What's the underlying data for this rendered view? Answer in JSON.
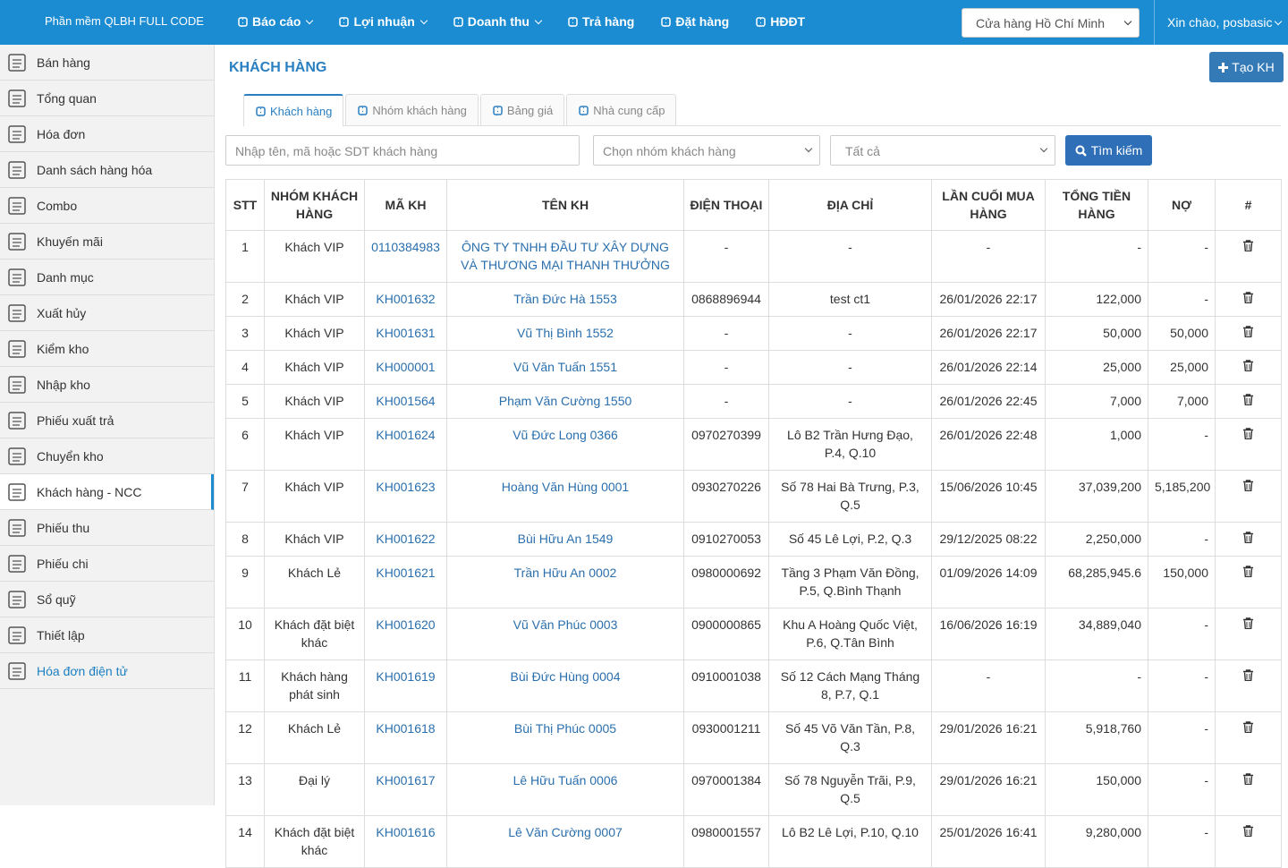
{
  "navbar": {
    "brand": "Phần mềm QLBH FULL CODE",
    "menu": [
      {
        "label": "Báo cáo",
        "dropdown": true
      },
      {
        "label": "Lợi nhuận",
        "dropdown": true
      },
      {
        "label": "Doanh thu",
        "dropdown": true
      },
      {
        "label": "Trả hàng",
        "dropdown": false
      },
      {
        "label": "Đặt hàng",
        "dropdown": false
      },
      {
        "label": "HĐĐT",
        "dropdown": false
      }
    ],
    "store_select": "Cửa hàng Hồ Chí Minh",
    "greeting": "Xin chào, posbasic"
  },
  "sidebar": {
    "items": [
      "Bán hàng",
      "Tổng quan",
      "Hóa đơn",
      "Danh sách hàng hóa",
      "Combo",
      "Khuyến mãi",
      "Danh mục",
      "Xuất hủy",
      "Kiểm kho",
      "Nhập kho",
      "Phiếu xuất trả",
      "Chuyển kho",
      "Khách hàng - NCC",
      "Phiếu thu",
      "Phiếu chi",
      "Sổ quỹ",
      "Thiết lập",
      "Hóa đơn điện tử"
    ],
    "active_index": 12,
    "link_index": 17
  },
  "page": {
    "title": "KHÁCH HÀNG",
    "create_button": "Tạo KH"
  },
  "tabs": {
    "items": [
      "Khách hàng",
      "Nhóm khách hàng",
      "Bảng giá",
      "Nhà cung cấp"
    ],
    "active_index": 0
  },
  "filters": {
    "search_placeholder": "Nhập tên, mã hoặc SDT khách hàng",
    "group_placeholder": "Chọn nhóm khách hàng",
    "status_select": "Tất cả",
    "search_button": "Tìm kiếm"
  },
  "table": {
    "headers": [
      "STT",
      "NHÓM KHÁCH HÀNG",
      "MÃ KH",
      "TÊN KH",
      "ĐIỆN THOẠI",
      "ĐỊA CHỈ",
      "LẦN CUỐI MUA HÀNG",
      "TỔNG TIỀN HÀNG",
      "NỢ",
      "#"
    ],
    "rows": [
      [
        "1",
        "Khách VIP",
        "0110384983",
        "ÔNG TY TNHH ĐẦU TƯ XÂY DỰNG VÀ THƯƠNG MẠI THANH THƯỞNG",
        "-",
        "-",
        "-",
        "-",
        "-"
      ],
      [
        "2",
        "Khách VIP",
        "KH001632",
        "Trần Đức Hà 1553",
        "0868896944",
        "test ct1",
        "26/01/2026 22:17",
        "122,000",
        "-"
      ],
      [
        "3",
        "Khách VIP",
        "KH001631",
        "Vũ Thị Bình 1552",
        "-",
        "-",
        "26/01/2026 22:17",
        "50,000",
        "50,000"
      ],
      [
        "4",
        "Khách VIP",
        "KH000001",
        "Vũ Văn Tuấn 1551",
        "-",
        "-",
        "26/01/2026 22:14",
        "25,000",
        "25,000"
      ],
      [
        "5",
        "Khách VIP",
        "KH001564",
        "Phạm Văn Cường 1550",
        "-",
        "-",
        "26/01/2026 22:45",
        "7,000",
        "7,000"
      ],
      [
        "6",
        "Khách VIP",
        "KH001624",
        "Vũ Đức Long 0366",
        "0970270399",
        "Lô B2 Trần Hưng Đạo, P.4, Q.10",
        "26/01/2026 22:48",
        "1,000",
        "-"
      ],
      [
        "7",
        "Khách VIP",
        "KH001623",
        "Hoàng Văn Hùng 0001",
        "0930270226",
        "Số 78 Hai Bà Trưng, P.3, Q.5",
        "15/06/2026 10:45",
        "37,039,200",
        "5,185,200"
      ],
      [
        "8",
        "Khách VIP",
        "KH001622",
        "Bùi Hữu An 1549",
        "0910270053",
        "Số 45 Lê Lợi, P.2, Q.3",
        "29/12/2025 08:22",
        "2,250,000",
        "-"
      ],
      [
        "9",
        "Khách Lẻ",
        "KH001621",
        "Trần Hữu An 0002",
        "0980000692",
        "Tầng 3 Phạm Văn Đồng, P.5, Q.Bình Thạnh",
        "01/09/2026 14:09",
        "68,285,945.6",
        "150,000"
      ],
      [
        "10",
        "Khách đặt biệt khác",
        "KH001620",
        "Vũ Văn Phúc 0003",
        "0900000865",
        "Khu A Hoàng Quốc Việt, P.6, Q.Tân Bình",
        "16/06/2026 16:19",
        "34,889,040",
        "-"
      ],
      [
        "11",
        "Khách hàng phát sinh",
        "KH001619",
        "Bùi Đức Hùng 0004",
        "0910001038",
        "Số 12 Cách Mạng Tháng 8, P.7, Q.1",
        "-",
        "-",
        "-"
      ],
      [
        "12",
        "Khách Lẻ",
        "KH001618",
        "Bùi Thị Phúc 0005",
        "0930001211",
        "Số 45 Võ Văn Tần, P.8, Q.3",
        "29/01/2026 16:21",
        "5,918,760",
        "-"
      ],
      [
        "13",
        "Đại lý",
        "KH001617",
        "Lê Hữu Tuấn 0006",
        "0970001384",
        "Số 78 Nguyễn Trãi, P.9, Q.5",
        "29/01/2026 16:21",
        "150,000",
        "-"
      ],
      [
        "14",
        "Khách đặt biệt khác",
        "KH001616",
        "Lê Văn Cường 0007",
        "0980001557",
        "Lô B2 Lê Lợi, P.10, Q.10",
        "25/01/2026 16:41",
        "9,280,000",
        "-"
      ]
    ]
  }
}
